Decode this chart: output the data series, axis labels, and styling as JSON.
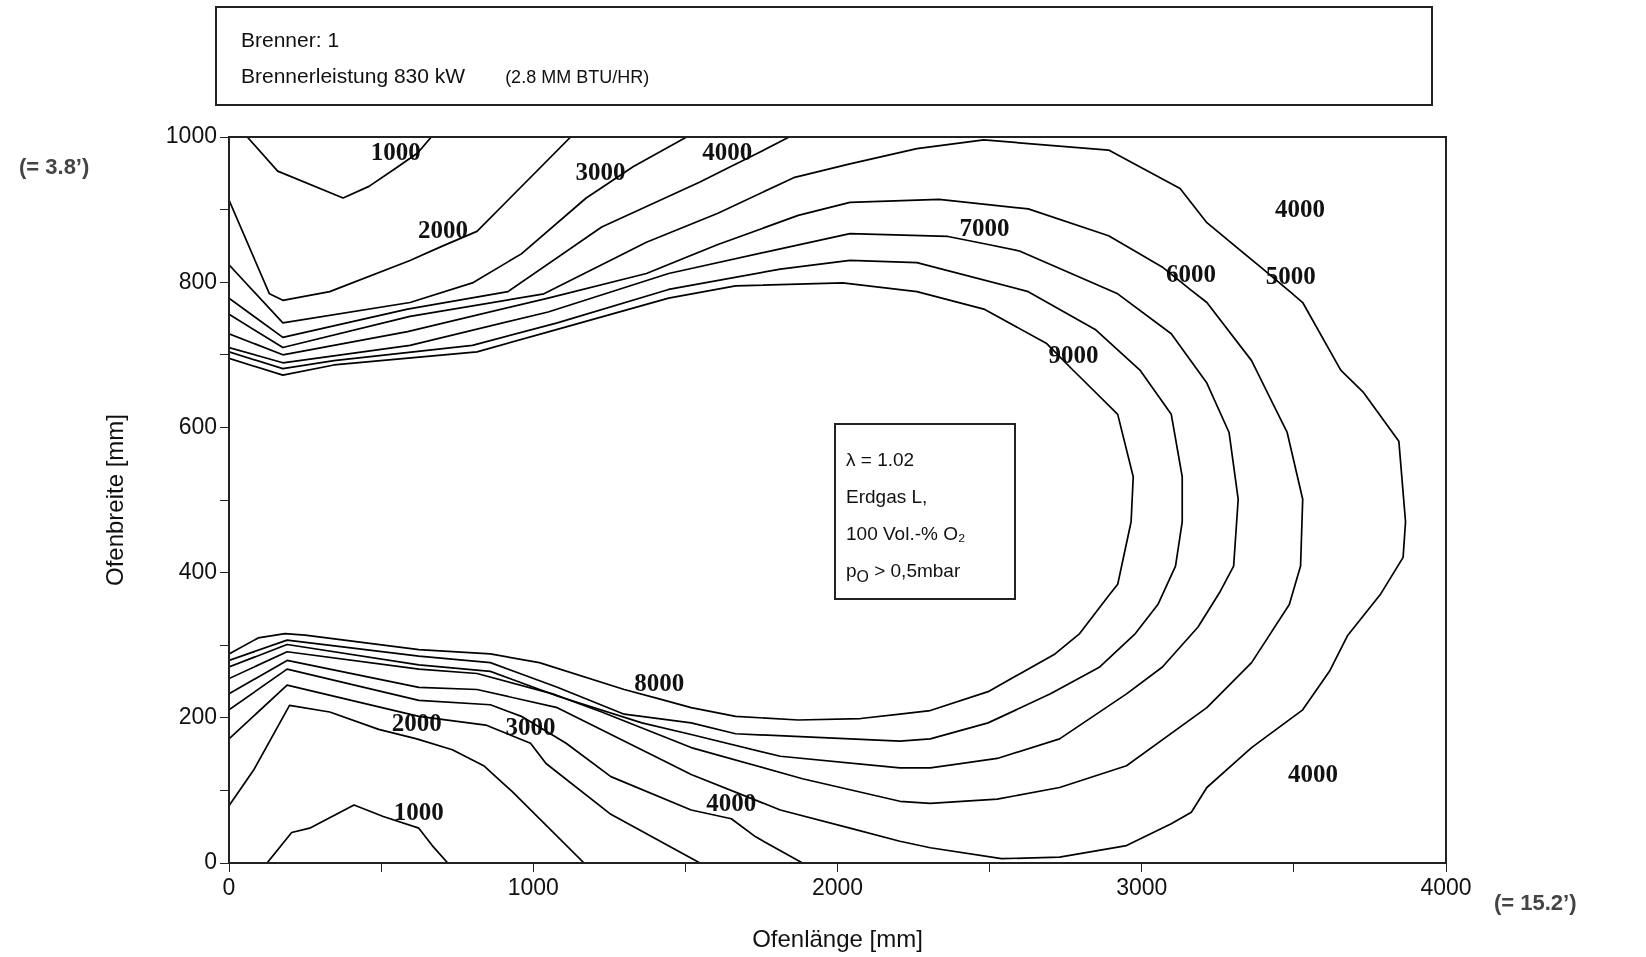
{
  "chart_data": {
    "type": "line",
    "title": "Brenner: 1",
    "subtitle": "Brennerleistung 830 kW",
    "xlabel": "Ofenlänge [mm]",
    "ylabel": "Ofenbreite [mm]",
    "xlim": [
      0,
      4000
    ],
    "xticks": [
      0,
      {
        "value": 500,
        "label": null
      },
      1000,
      {
        "value": 1500,
        "label": null
      },
      2000,
      {
        "value": 2500,
        "label": null
      },
      3000,
      {
        "value": 3500,
        "label": null
      },
      4000
    ],
    "ylim": [
      0,
      1000
    ],
    "yticks": [
      0,
      {
        "value": 100,
        "label": null
      },
      200,
      {
        "value": 300,
        "label": null
      },
      400,
      {
        "value": 500,
        "label": null
      },
      600,
      {
        "value": 700,
        "label": null
      },
      800,
      {
        "value": 900,
        "label": null
      },
      1000
    ],
    "grid": false,
    "legend": false,
    "series": [
      {
        "color": "#000000",
        "x": [
          60,
          160,
          375,
          460,
          548,
          620,
          665,
          null,
          125,
          206,
          265,
          411,
          507,
          624,
          668,
          719
        ],
        "values": [
          1000,
          953,
          916,
          932,
          957,
          978,
          1000,
          null,
          0,
          42,
          48,
          80,
          64,
          48,
          24,
          0
        ]
      },
      {
        "color": "#000000",
        "x": [
          0,
          133,
          177,
          331,
          595,
          703,
          815,
          1123,
          null,
          0,
          81,
          199,
          331,
          492,
          617,
          734,
          837,
          932,
          1167
        ],
        "values": [
          913,
          784,
          775,
          787,
          830,
          850,
          870,
          1000,
          null,
          79,
          128,
          217,
          208,
          184,
          171,
          156,
          134,
          98,
          0
        ]
      },
      {
        "color": "#000000",
        "x": [
          0,
          177,
          595,
          800,
          961,
          1174,
          1221,
          1328,
          1504,
          null,
          0,
          191,
          624,
          844,
          991,
          1042,
          1255,
          1548
        ],
        "values": [
          824,
          744,
          772,
          799,
          839,
          916,
          929,
          959,
          1000,
          null,
          171,
          245,
          202,
          190,
          165,
          137,
          67,
          0
        ]
      },
      {
        "color": "#000000",
        "x": [
          0,
          177,
          587,
          917,
          1225,
          1548,
          1638,
          1739,
          1841,
          null,
          0,
          191,
          624,
          859,
          961,
          1108,
          1255,
          1519,
          1651,
          1731,
          1885
        ],
        "values": [
          778,
          724,
          763,
          787,
          876,
          938,
          957,
          978,
          1000,
          null,
          211,
          267,
          224,
          218,
          202,
          165,
          119,
          73,
          61,
          36,
          0
        ]
      },
      {
        "color": "#000000",
        "x": [
          0,
          177,
          595,
          1035,
          1372,
          1607,
          1856,
          2041,
          2261,
          2481,
          2891,
          3126,
          3214,
          3390,
          3490,
          3529,
          3654,
          3727,
          3845,
          3867,
          3859,
          3786,
          3676,
          3617,
          3529,
          3361,
          3214,
          3163,
          3097,
          2950,
          2730,
          2539,
          2305,
          2205,
          2041,
          1812,
          1519,
          1079,
          815,
          624,
          191,
          0
        ],
        "values": [
          756,
          710,
          753,
          784,
          855,
          895,
          944,
          963,
          984,
          996,
          982,
          929,
          882,
          821,
          786,
          772,
          679,
          649,
          581,
          470,
          421,
          371,
          313,
          264,
          211,
          159,
          104,
          70,
          54,
          24,
          8,
          6,
          21,
          30,
          48,
          73,
          122,
          214,
          239,
          242,
          279,
          233
        ]
      },
      {
        "color": "#000000",
        "x": [
          0,
          177,
          587,
          1049,
          1372,
          1607,
          1871,
          2041,
          2334,
          2627,
          2891,
          3067,
          3162,
          3214,
          3361,
          3478,
          3529,
          3522,
          3485,
          3361,
          3214,
          2950,
          2730,
          2525,
          2305,
          2205,
          1885,
          1519,
          1225,
          1064,
          815,
          624,
          191,
          0
        ],
        "values": [
          729,
          700,
          732,
          778,
          812,
          852,
          892,
          910,
          914,
          901,
          864,
          821,
          789,
          772,
          692,
          593,
          501,
          409,
          356,
          276,
          214,
          134,
          104,
          88,
          82,
          85,
          116,
          159,
          208,
          233,
          261,
          267,
          291,
          254
        ]
      },
      {
        "color": "#000000",
        "x": [
          0,
          177,
          595,
          1049,
          1445,
          1812,
          2041,
          2363,
          2483,
          2598,
          2921,
          3097,
          3214,
          3287,
          3317,
          3302,
          3258,
          3185,
          3068,
          2950,
          2730,
          2525,
          2305,
          2205,
          1812,
          1519,
          1357,
          1079,
          859,
          624,
          191,
          0
        ],
        "values": [
          710,
          689,
          713,
          759,
          812,
          846,
          867,
          863,
          853,
          843,
          784,
          729,
          661,
          593,
          501,
          409,
          374,
          325,
          270,
          233,
          171,
          144,
          131,
          131,
          147,
          177,
          193,
          230,
          264,
          273,
          301,
          270
        ]
      },
      {
        "color": "#000000",
        "x": [
          0,
          177,
          345,
          800,
          1079,
          1445,
          1812,
          2041,
          2261,
          2627,
          2847,
          2994,
          3097,
          3133,
          3133,
          3111,
          3053,
          2979,
          2862,
          2700,
          2495,
          2305,
          2205,
          1665,
          1519,
          1299,
          1079,
          859,
          624,
          191,
          0
        ],
        "values": [
          704,
          681,
          692,
          713,
          744,
          790,
          818,
          830,
          827,
          787,
          735,
          679,
          618,
          532,
          470,
          409,
          356,
          316,
          270,
          233,
          193,
          171,
          168,
          178,
          193,
          205,
          242,
          276,
          285,
          307,
          279
        ]
      },
      {
        "color": "#000000",
        "x": [
          0,
          177,
          345,
          815,
          1079,
          1445,
          1665,
          2017,
          2261,
          2481,
          2686,
          2776,
          2803,
          2921,
          2972,
          2965,
          2921,
          2891,
          2796,
          2715,
          2495,
          2305,
          2205,
          2076,
          1871,
          1665,
          1519,
          1414,
          1299,
          1020,
          859,
          624,
          250,
          184,
          96,
          0
        ],
        "values": [
          695,
          672,
          686,
          704,
          735,
          778,
          795,
          799,
          787,
          763,
          716,
          678,
          667,
          618,
          532,
          470,
          384,
          368,
          316,
          288,
          236,
          210,
          205,
          199,
          197,
          202,
          214,
          226,
          239,
          276,
          288,
          294,
          314,
          316,
          310,
          288
        ]
      }
    ],
    "annotations": [
      {
        "text": "1000",
        "x": 548,
        "y": 957
      },
      {
        "text": "2000",
        "x": 703,
        "y": 850
      },
      {
        "text": "3000",
        "x": 1221,
        "y": 929
      },
      {
        "text": "4000",
        "x": 1638,
        "y": 957
      },
      {
        "text": "7000",
        "x": 2483,
        "y": 853
      },
      {
        "text": "6000",
        "x": 3162,
        "y": 789
      },
      {
        "text": "5000",
        "x": 3490,
        "y": 786
      },
      {
        "text": "9000",
        "x": 2776,
        "y": 678
      },
      {
        "text": "8000",
        "x": 1414,
        "y": 226
      },
      {
        "text": "2000",
        "x": 617,
        "y": 171
      },
      {
        "text": "3000",
        "x": 991,
        "y": 165
      },
      {
        "text": "1000",
        "x": 624,
        "y": 48
      },
      {
        "text": "4000",
        "x": 1651,
        "y": 61
      },
      "(2.8 MM BTU/HR)",
      "λ = 1.02",
      "Erdgas L,",
      "100 Vol.-% O₂",
      "p$_{O}$ > 0,5mbar",
      "(= 3.8’)",
      "(= 15.2’)",
      "4000",
      "4000"
    ]
  }
}
